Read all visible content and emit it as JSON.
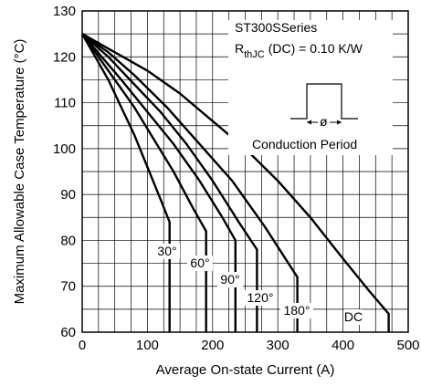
{
  "chart_data": {
    "type": "line",
    "title": "",
    "xlabel": "Average On-state Current (A)",
    "ylabel": "Maximum Allowable Case Temperature (°C)",
    "xlim": [
      0,
      500
    ],
    "ylim": [
      60,
      130
    ],
    "xticks": [
      "0",
      "100",
      "200",
      "300",
      "400",
      "500"
    ],
    "yticks": [
      "60",
      "70",
      "80",
      "90",
      "100",
      "110",
      "120",
      "130"
    ],
    "grid": true,
    "annotation": {
      "series_name": "ST300SSeries",
      "rth_prefix": "R",
      "rth_sub": "thJC",
      "rth_suffix": "(DC) = 0.10 K/W",
      "inset_symbol": "ø",
      "inset_caption": "Conduction Period"
    },
    "series": [
      {
        "name": "30°",
        "x": [
          0,
          20,
          40,
          60,
          80,
          100,
          120,
          134,
          134
        ],
        "y": [
          125,
          120,
          115,
          109,
          103,
          96,
          89,
          84,
          60
        ]
      },
      {
        "name": "60°",
        "x": [
          0,
          20,
          50,
          80,
          110,
          140,
          170,
          190,
          190
        ],
        "y": [
          125,
          121,
          115,
          109,
          102,
          95,
          87,
          82,
          60
        ]
      },
      {
        "name": "90°",
        "x": [
          0,
          30,
          60,
          100,
          140,
          180,
          215,
          235,
          235
        ],
        "y": [
          125,
          120,
          115,
          108,
          101,
          93,
          85,
          80,
          60
        ]
      },
      {
        "name": "120°",
        "x": [
          0,
          40,
          80,
          120,
          160,
          200,
          240,
          268,
          268
        ],
        "y": [
          125,
          120,
          114,
          108,
          101,
          93,
          84,
          78,
          60
        ]
      },
      {
        "name": "180°",
        "x": [
          0,
          40,
          80,
          130,
          180,
          230,
          280,
          330,
          330
        ],
        "y": [
          125,
          121,
          116,
          109,
          101,
          93,
          83,
          72,
          60
        ]
      },
      {
        "name": "DC",
        "x": [
          0,
          50,
          100,
          150,
          200,
          250,
          300,
          350,
          400,
          440,
          470,
          470
        ],
        "y": [
          125,
          121,
          117,
          112,
          106,
          100,
          93,
          85,
          76,
          69,
          64,
          60
        ]
      }
    ]
  }
}
